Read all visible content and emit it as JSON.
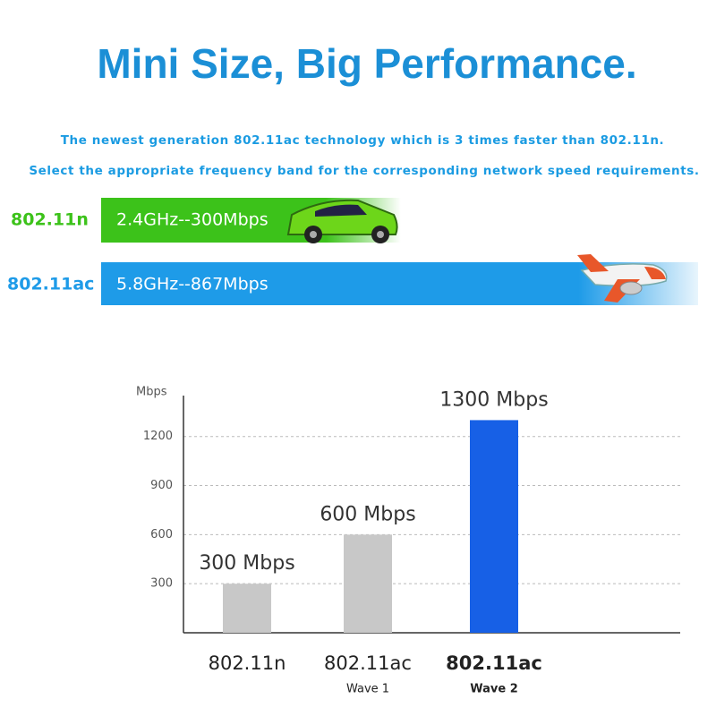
{
  "header": {
    "title": "Mini Size, Big Performance.",
    "lines": [
      "The newest generation 802.11ac technology which is 3 times faster than 802.11n.",
      "Select the appropriate frequency band for the corresponding network speed requirements."
    ]
  },
  "bands": [
    {
      "name": "802.11n",
      "text": "2.4GHz--300Mbps",
      "color": "#3cc21a"
    },
    {
      "name": "802.11ac",
      "text": "5.8GHz--867Mbps",
      "color": "#1e9be8"
    }
  ],
  "chart_data": {
    "type": "bar",
    "y_label": "Mbps",
    "categories": [
      "802.11n",
      "802.11ac",
      "802.11ac"
    ],
    "subcategories": [
      null,
      "Wave 1",
      "Wave 2"
    ],
    "values": [
      300,
      600,
      1300
    ],
    "value_labels": [
      "300 Mbps",
      "600 Mbps",
      "1300 Mbps"
    ],
    "colors": [
      "#c8c8c8",
      "#c8c8c8",
      "#1760e6"
    ],
    "ylim": [
      0,
      1450
    ],
    "yticks": [
      300,
      600,
      900,
      1200
    ],
    "grid": true
  }
}
